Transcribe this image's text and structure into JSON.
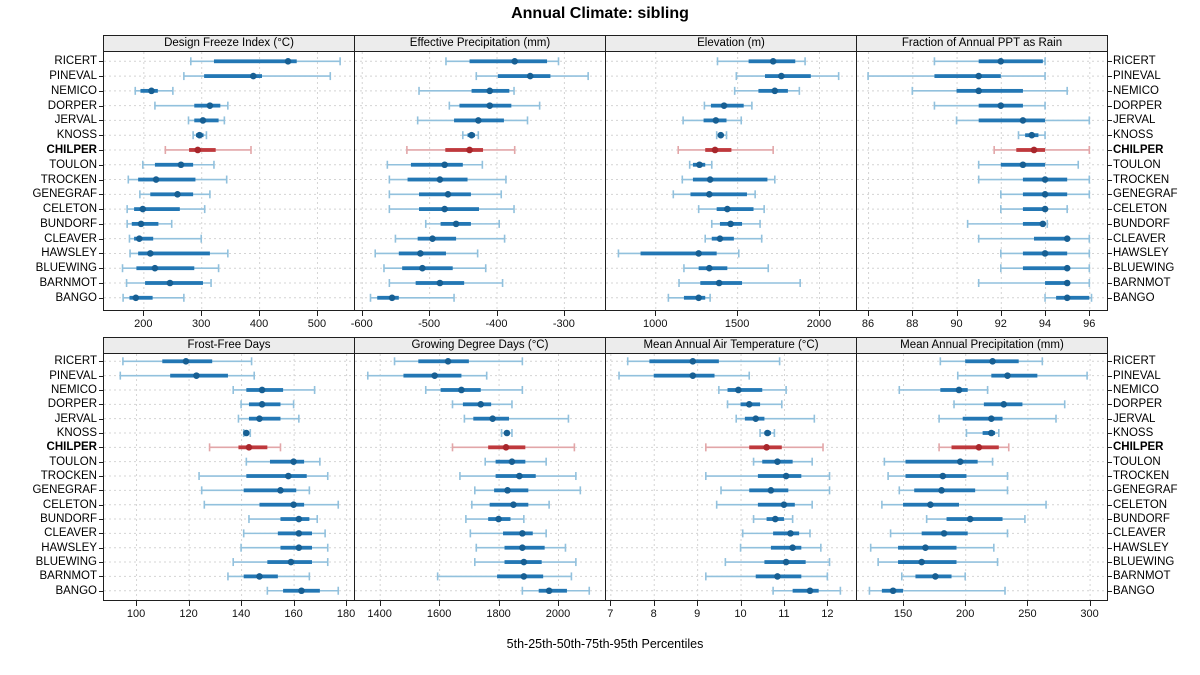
{
  "title": "Annual Climate: sibling",
  "footer": "5th-25th-50th-75th-95th Percentiles",
  "highlight_site": "CHILPER",
  "colors": {
    "blue": "#2377b4",
    "blue_light": "#92c1dd",
    "blue_dot": "#175f93",
    "red": "#bf393d",
    "red_light": "#e2a6a8",
    "red_dot": "#a8262b",
    "grid": "#d4d4d4",
    "strip_bg": "#ececec",
    "border": "#1f1f1f",
    "text": "#000000"
  },
  "chart_data": {
    "type": "percentile-dotplot",
    "percentiles": [
      5,
      25,
      50,
      75,
      95
    ],
    "legend_note": "thin line = 5th-95th, thick bar = 25th-75th, dot = median; CHILPER highlighted red",
    "sites": [
      "RICERT",
      "PINEVAL",
      "NEMICO",
      "DORPER",
      "JERVAL",
      "KNOSS",
      "CHILPER",
      "TOULON",
      "TROCKEN",
      "GENEGRAF",
      "CELETON",
      "BUNDORF",
      "CLEAVER",
      "HAWSLEY",
      "BLUEWING",
      "BARNMOT",
      "BANGO"
    ],
    "panels": [
      {
        "title": "Design Freeze Index (°C)",
        "xlim": [
          132,
          564
        ],
        "ticks": [
          200,
          300,
          400,
          500
        ],
        "values": [
          [
            282,
            322,
            450,
            465,
            540
          ],
          [
            270,
            305,
            390,
            405,
            523
          ],
          [
            186,
            195,
            214,
            225,
            251
          ],
          [
            220,
            288,
            315,
            333,
            346
          ],
          [
            278,
            288,
            303,
            330,
            340
          ],
          [
            286,
            291,
            297,
            304,
            309
          ],
          [
            238,
            279,
            294,
            325,
            386
          ],
          [
            199,
            220,
            265,
            286,
            322
          ],
          [
            174,
            191,
            222,
            290,
            344
          ],
          [
            194,
            212,
            259,
            286,
            315
          ],
          [
            172,
            184,
            199,
            263,
            306
          ],
          [
            172,
            180,
            196,
            226,
            249
          ],
          [
            176,
            184,
            193,
            217,
            300
          ],
          [
            177,
            191,
            212,
            315,
            346
          ],
          [
            164,
            188,
            220,
            288,
            330
          ],
          [
            171,
            203,
            246,
            303,
            317
          ],
          [
            165,
            176,
            187,
            216,
            270
          ]
        ]
      },
      {
        "title": "Effective Precipitation (mm)",
        "xlim": [
          -610,
          -239
        ],
        "ticks": [
          -600,
          -500,
          -400,
          -300
        ],
        "values": [
          [
            -475,
            -440,
            -373,
            -325,
            -308
          ],
          [
            -430,
            -398,
            -350,
            -320,
            -264
          ],
          [
            -515,
            -437,
            -410,
            -381,
            -374
          ],
          [
            -470,
            -455,
            -410,
            -378,
            -336
          ],
          [
            -517,
            -463,
            -427,
            -389,
            -354
          ],
          [
            -450,
            -443,
            -437,
            -432,
            -427
          ],
          [
            -533,
            -476,
            -440,
            -420,
            -373
          ],
          [
            -562,
            -527,
            -477,
            -450,
            -421
          ],
          [
            -559,
            -532,
            -484,
            -443,
            -386
          ],
          [
            -559,
            -515,
            -472,
            -438,
            -393
          ],
          [
            -559,
            -515,
            -477,
            -426,
            -374
          ],
          [
            -505,
            -483,
            -460,
            -438,
            -396
          ],
          [
            -550,
            -517,
            -495,
            -460,
            -388
          ],
          [
            -580,
            -545,
            -513,
            -475,
            -428
          ],
          [
            -567,
            -540,
            -510,
            -465,
            -416
          ],
          [
            -559,
            -520,
            -484,
            -448,
            -391
          ],
          [
            -587,
            -577,
            -555,
            -545,
            -463
          ]
        ]
      },
      {
        "title": "Elevation (m)",
        "xlim": [
          699,
          2226
        ],
        "ticks": [
          1000,
          1500,
          2000
        ],
        "values": [
          [
            1380,
            1570,
            1720,
            1855,
            1915
          ],
          [
            1495,
            1670,
            1770,
            1950,
            2120
          ],
          [
            1485,
            1630,
            1730,
            1810,
            1880
          ],
          [
            1300,
            1340,
            1420,
            1540,
            1590
          ],
          [
            1170,
            1295,
            1370,
            1435,
            1525
          ],
          [
            1375,
            1390,
            1400,
            1415,
            1435
          ],
          [
            1140,
            1305,
            1365,
            1465,
            1720
          ],
          [
            1210,
            1230,
            1270,
            1305,
            1345
          ],
          [
            1165,
            1230,
            1335,
            1685,
            1730
          ],
          [
            1110,
            1215,
            1330,
            1560,
            1610
          ],
          [
            1265,
            1375,
            1440,
            1600,
            1665
          ],
          [
            1345,
            1395,
            1460,
            1530,
            1640
          ],
          [
            1305,
            1345,
            1395,
            1480,
            1650
          ],
          [
            775,
            910,
            1265,
            1375,
            1510
          ],
          [
            1175,
            1265,
            1330,
            1440,
            1690
          ],
          [
            1145,
            1275,
            1390,
            1530,
            1885
          ],
          [
            1080,
            1175,
            1265,
            1305,
            1335
          ]
        ]
      },
      {
        "title": "Fraction of Annual PPT as Rain",
        "xlim": [
          85.5,
          96.8
        ],
        "ticks": [
          86,
          88,
          90,
          92,
          94,
          96
        ],
        "values": [
          [
            89,
            91,
            92,
            93.9,
            94
          ],
          [
            86,
            89,
            91,
            92,
            94
          ],
          [
            88,
            90,
            91,
            93,
            95
          ],
          [
            89,
            91,
            92,
            93,
            94
          ],
          [
            90,
            91,
            93,
            94,
            96
          ],
          [
            92.8,
            93.1,
            93.4,
            93.7,
            94
          ],
          [
            91.7,
            92.7,
            93.5,
            94,
            96
          ],
          [
            91,
            92,
            93,
            94,
            95.5
          ],
          [
            91,
            93,
            94,
            95,
            96
          ],
          [
            92,
            93,
            94,
            95,
            96
          ],
          [
            92,
            93,
            94,
            94.1,
            95
          ],
          [
            90.5,
            93,
            93.9,
            94,
            94.1
          ],
          [
            91,
            93.5,
            95,
            95.1,
            96
          ],
          [
            92,
            93,
            94,
            95,
            96
          ],
          [
            92,
            93,
            95,
            95.1,
            96
          ],
          [
            91,
            94,
            95,
            95.1,
            96
          ],
          [
            94,
            94.5,
            95,
            96,
            96.1
          ]
        ]
      },
      {
        "title": "Frost-Free Days",
        "xlim": [
          87.8,
          183
        ],
        "ticks": [
          100,
          120,
          140,
          160,
          180
        ],
        "values": [
          [
            95,
            110,
            119,
            129,
            144
          ],
          [
            94,
            113,
            123,
            135,
            145
          ],
          [
            137,
            142,
            148,
            156,
            168
          ],
          [
            140,
            143,
            148,
            155,
            160
          ],
          [
            139,
            143,
            147,
            155,
            162
          ],
          [
            141,
            141.5,
            142,
            142.5,
            143.5
          ],
          [
            128,
            139,
            143,
            150,
            155
          ],
          [
            142,
            151,
            160,
            164,
            170
          ],
          [
            124,
            142,
            158,
            165,
            173
          ],
          [
            125,
            141,
            155,
            161,
            166
          ],
          [
            126,
            147,
            160,
            164,
            177
          ],
          [
            143,
            155,
            162,
            166,
            169
          ],
          [
            141,
            154,
            162,
            167,
            172
          ],
          [
            140,
            155,
            162,
            167,
            173
          ],
          [
            137,
            150,
            159,
            167,
            173
          ],
          [
            135,
            141,
            147,
            154,
            166
          ],
          [
            150,
            156,
            163,
            170,
            177
          ]
        ]
      },
      {
        "title": "Growing Degree Days (°C)",
        "xlim": [
          1317,
          2158
        ],
        "ticks": [
          1400,
          1600,
          1800,
          2000
        ],
        "values": [
          [
            1450,
            1530,
            1630,
            1700,
            1880
          ],
          [
            1360,
            1480,
            1585,
            1675,
            1760
          ],
          [
            1555,
            1605,
            1675,
            1740,
            1880
          ],
          [
            1645,
            1680,
            1740,
            1775,
            1845
          ],
          [
            1685,
            1715,
            1780,
            1835,
            2035
          ],
          [
            1810,
            1820,
            1828,
            1835,
            1845
          ],
          [
            1645,
            1765,
            1825,
            1890,
            2055
          ],
          [
            1755,
            1790,
            1845,
            1890,
            1960
          ],
          [
            1670,
            1790,
            1870,
            1925,
            2060
          ],
          [
            1720,
            1785,
            1830,
            1900,
            2075
          ],
          [
            1710,
            1770,
            1850,
            1900,
            1970
          ],
          [
            1690,
            1765,
            1800,
            1840,
            1885
          ],
          [
            1705,
            1815,
            1880,
            1915,
            1960
          ],
          [
            1725,
            1820,
            1880,
            1955,
            2025
          ],
          [
            1720,
            1820,
            1885,
            1945,
            2060
          ],
          [
            1595,
            1795,
            1885,
            1950,
            2045
          ],
          [
            1880,
            1935,
            1970,
            2030,
            2105
          ]
        ]
      },
      {
        "title": "Mean Annual Air Temperature (°C)",
        "xlim": [
          6.9,
          12.66
        ],
        "ticks": [
          7,
          8,
          9,
          10,
          11,
          12
        ],
        "values": [
          [
            7.4,
            7.9,
            8.9,
            9.5,
            10.9
          ],
          [
            7.2,
            8,
            8.9,
            9.4,
            10.2
          ],
          [
            9.5,
            9.7,
            9.95,
            10.5,
            11.05
          ],
          [
            9.7,
            10,
            10.2,
            10.45,
            10.95
          ],
          [
            9.9,
            10.1,
            10.35,
            10.55,
            11.7
          ],
          [
            10.45,
            10.55,
            10.62,
            10.7,
            10.78
          ],
          [
            9.2,
            10.2,
            10.6,
            10.95,
            11.9
          ],
          [
            10.3,
            10.5,
            10.85,
            11.2,
            11.65
          ],
          [
            9.2,
            10.4,
            11.05,
            11.4,
            12.05
          ],
          [
            9.55,
            10.2,
            10.7,
            11.1,
            12.05
          ],
          [
            9.45,
            10.4,
            11,
            11.25,
            11.65
          ],
          [
            10.3,
            10.6,
            10.8,
            11,
            11.2
          ],
          [
            10.05,
            10.75,
            11.15,
            11.35,
            11.6
          ],
          [
            10,
            10.7,
            11.2,
            11.4,
            11.85
          ],
          [
            9.65,
            10.55,
            11.05,
            11.5,
            12.05
          ],
          [
            9.2,
            10.35,
            10.85,
            11.4,
            12
          ],
          [
            10.75,
            11.2,
            11.6,
            11.8,
            12.3
          ]
        ]
      },
      {
        "title": "Mean Annual Precipitation (mm)",
        "xlim": [
          113,
          314
        ],
        "ticks": [
          150,
          200,
          250,
          300
        ],
        "values": [
          [
            180,
            200,
            222,
            243,
            262
          ],
          [
            194,
            221,
            234,
            258,
            298
          ],
          [
            147,
            180,
            195,
            202,
            218
          ],
          [
            191,
            215,
            231,
            246,
            280
          ],
          [
            179,
            198,
            221,
            230,
            273
          ],
          [
            201,
            214,
            221,
            224,
            227
          ],
          [
            179,
            189,
            211,
            227,
            235
          ],
          [
            135,
            152,
            196,
            210,
            222
          ],
          [
            138,
            152,
            182,
            201,
            234
          ],
          [
            147,
            159,
            181,
            208,
            234
          ],
          [
            133,
            150,
            172,
            195,
            265
          ],
          [
            169,
            185,
            204,
            230,
            248
          ],
          [
            140,
            165,
            183,
            202,
            234
          ],
          [
            124,
            146,
            168,
            193,
            223
          ],
          [
            130,
            146,
            165,
            193,
            226
          ],
          [
            149,
            160,
            176,
            189,
            200
          ],
          [
            123,
            133,
            142,
            150,
            232
          ]
        ]
      }
    ]
  }
}
